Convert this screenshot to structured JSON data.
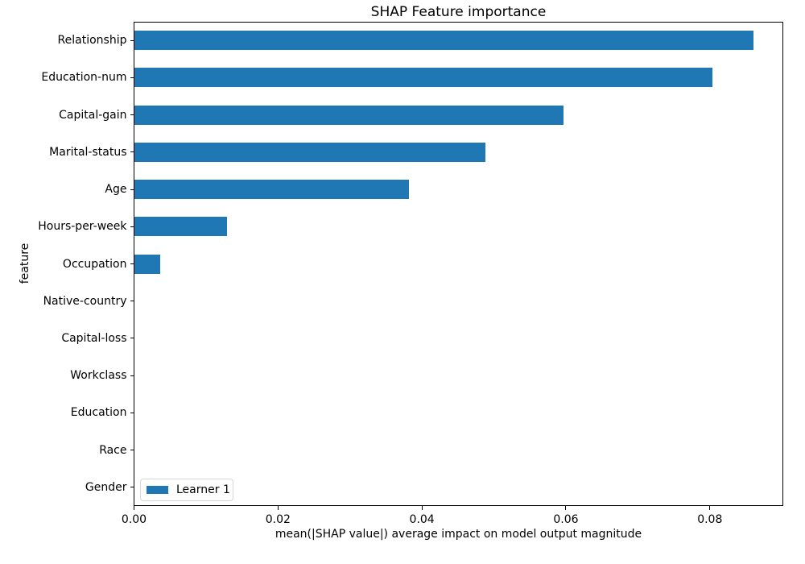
{
  "chart_data": {
    "type": "bar",
    "orientation": "horizontal",
    "title": "SHAP Feature importance",
    "xlabel": "mean(|SHAP value|) average impact on model output magnitude",
    "ylabel": "feature",
    "categories": [
      "Relationship",
      "Education-num",
      "Capital-gain",
      "Marital-status",
      "Age",
      "Hours-per-week",
      "Occupation",
      "Native-country",
      "Capital-loss",
      "Workclass",
      "Education",
      "Race",
      "Gender"
    ],
    "series": [
      {
        "name": "Learner 1",
        "values": [
          0.086,
          0.0803,
          0.0596,
          0.0488,
          0.0381,
          0.0129,
          0.0036,
          0.0,
          0.0,
          0.0,
          0.0,
          0.0,
          0.0
        ]
      }
    ],
    "xlim": [
      0,
      0.0902
    ],
    "xticks": [
      0.0,
      0.02,
      0.04,
      0.06,
      0.08
    ],
    "xtick_labels": [
      "0.00",
      "0.02",
      "0.04",
      "0.06",
      "0.08"
    ],
    "legend": {
      "entries": [
        "Learner 1"
      ],
      "position": "lower left"
    },
    "grid": false,
    "bar_color": "#1f77b4",
    "spine_color": "#000000"
  }
}
